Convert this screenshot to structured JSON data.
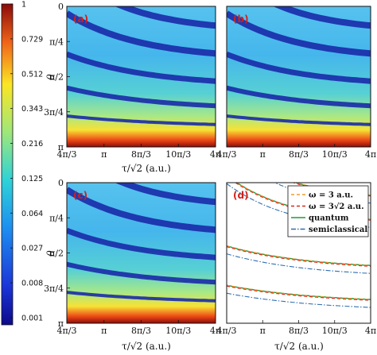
{
  "figure": {
    "colorbar_ticks": [
      "1",
      "0.729",
      "0.512",
      "0.343",
      "0.216",
      "0.125",
      "0.064",
      "0.027",
      "0.008",
      "0.001"
    ],
    "colorbar_tick_values": [
      1,
      0.729,
      0.512,
      0.343,
      0.216,
      0.125,
      0.064,
      0.027,
      0.008,
      0.001
    ]
  },
  "chart_data": [
    {
      "type": "heatmap",
      "panel_label": "(a)",
      "ylabel": "θ",
      "xlabel": "",
      "yticks": [
        "0",
        "π/4",
        "π/2",
        "3π/4",
        "π"
      ],
      "xticks": [
        "4π/3",
        "π",
        "8π/3",
        "10π/3",
        "4π"
      ],
      "ylim": [
        0,
        3.1416
      ],
      "colorbar": true
    },
    {
      "type": "heatmap",
      "panel_label": "(b)",
      "xlabel": "τ/√2 (a.u.)",
      "xticks": [
        "4π/3",
        "π",
        "8π/3",
        "10π/3",
        "4π"
      ],
      "yticks": [
        "0",
        "π/4",
        "π/2",
        "3π/4",
        "π"
      ]
    },
    {
      "type": "heatmap",
      "panel_label": "(c)",
      "ylabel": "θ",
      "xlabel": "τ/√2 (a.u.)",
      "yticks": [
        "0",
        "π/4",
        "π/2",
        "3π/4",
        "π"
      ],
      "xticks": [
        "4π/3",
        "π",
        "8π/3",
        "10π/3",
        "4π"
      ]
    },
    {
      "type": "line",
      "panel_label": "(d)",
      "xlabel": "τ/√2 (a.u.)",
      "xticks": [
        "4π/3",
        "π",
        "8π/3",
        "10π/3",
        "4π"
      ],
      "legend_position": "top-right",
      "series": [
        {
          "name": "ω = 3 a.u.",
          "color": "#f39c2c",
          "style": "dashed"
        },
        {
          "name": "ω = 3√2 a.u.",
          "color": "#d62a1e",
          "style": "dashed"
        },
        {
          "name": "quantum",
          "color": "#1f9a3a",
          "style": "solid"
        },
        {
          "name": "semiclassical",
          "color": "#2f6fb0",
          "style": "dashdot"
        }
      ]
    }
  ]
}
